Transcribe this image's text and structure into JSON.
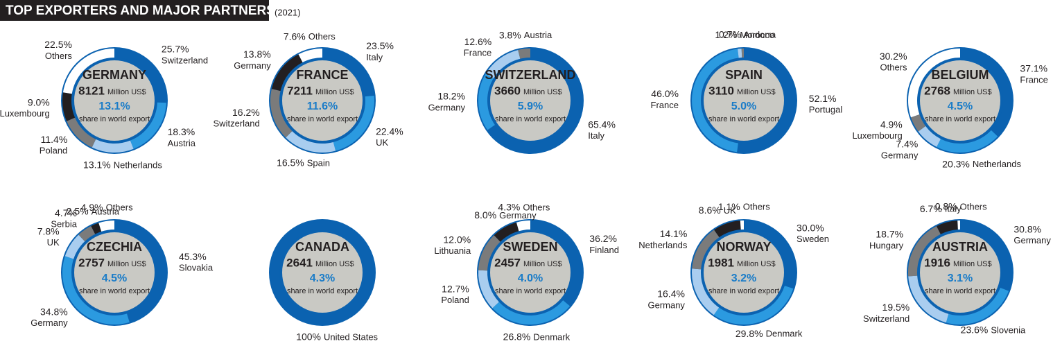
{
  "title": "TOP EXPORTERS AND MAJOR PARTNERS",
  "year": "(2021)",
  "chart_data": [
    {
      "type": "donut",
      "title": "GERMANY",
      "export": "8121",
      "unit": "Million US$",
      "share": "13.1%",
      "share_caption": "share in world export",
      "categories": [
        "Switzerland",
        "Austria",
        "Netherlands",
        "Poland",
        "Luxembourg",
        "Others"
      ],
      "values": [
        25.7,
        18.3,
        13.1,
        11.4,
        9.0,
        22.5
      ],
      "value_labels": [
        "25.7%",
        "18.3%",
        "13.1%",
        "11.4%",
        "9.0%",
        "22.5%"
      ],
      "colors": [
        "#0b62b0",
        "#2b9ae0",
        "#a9cdef",
        "#7b7b7b",
        "#231f20",
        "#ffffff"
      ]
    },
    {
      "type": "donut",
      "title": "FRANCE",
      "export": "7211",
      "unit": "Million US$",
      "share": "11.6%",
      "share_caption": "share in world export",
      "categories": [
        "Italy",
        "UK",
        "Spain",
        "Switzerland",
        "Germany",
        "Others"
      ],
      "values": [
        23.5,
        22.4,
        16.5,
        16.2,
        13.8,
        7.6
      ],
      "value_labels": [
        "23.5%",
        "22.4%",
        "16.5%",
        "16.2%",
        "13.8%",
        "7.6%"
      ],
      "colors": [
        "#0b62b0",
        "#2b9ae0",
        "#a9cdef",
        "#7b7b7b",
        "#231f20",
        "#ffffff"
      ]
    },
    {
      "type": "donut",
      "title": "SWITZERLAND",
      "export": "3660",
      "unit": "Million US$",
      "share": "5.9%",
      "share_caption": "share in world export",
      "categories": [
        "Italy",
        "Germany",
        "France",
        "Austria"
      ],
      "values": [
        65.4,
        18.2,
        12.6,
        3.8
      ],
      "value_labels": [
        "65.4%",
        "18.2%",
        "12.6%",
        "3.8%"
      ],
      "colors": [
        "#0b62b0",
        "#2b9ae0",
        "#a9cdef",
        "#7b7b7b"
      ]
    },
    {
      "type": "donut",
      "title": "SPAIN",
      "export": "3110",
      "unit": "Million US$",
      "share": "5.0%",
      "share_caption": "share in world export",
      "categories": [
        "Portugal",
        "France",
        "Morocco",
        "Andorra"
      ],
      "values": [
        52.1,
        46.0,
        1.2,
        0.7
      ],
      "value_labels": [
        "52.1%",
        "46.0%",
        "1.2%",
        "0.7%"
      ],
      "colors": [
        "#0b62b0",
        "#2b9ae0",
        "#a9cdef",
        "#7b7b7b"
      ]
    },
    {
      "type": "donut",
      "title": "BELGIUM",
      "export": "2768",
      "unit": "Million US$",
      "share": "4.5%",
      "share_caption": "share in world export",
      "categories": [
        "France",
        "Netherlands",
        "Germany",
        "Luxembourg",
        "Others"
      ],
      "values": [
        37.1,
        20.3,
        7.4,
        4.9,
        30.2
      ],
      "value_labels": [
        "37.1%",
        "20.3%",
        "7.4%",
        "4.9%",
        "30.2%"
      ],
      "colors": [
        "#0b62b0",
        "#2b9ae0",
        "#a9cdef",
        "#7b7b7b",
        "#ffffff"
      ]
    },
    {
      "type": "donut",
      "title": "CZECHIA",
      "export": "2757",
      "unit": "Million US$",
      "share": "4.5%",
      "share_caption": "share in world export",
      "categories": [
        "Slovakia",
        "Germany",
        "UK",
        "Serbia",
        "Austria",
        "Others"
      ],
      "values": [
        45.3,
        34.8,
        7.8,
        4.7,
        2.5,
        4.9
      ],
      "value_labels": [
        "45.3%",
        "34.8%",
        "7.8%",
        "4.7%",
        "2.5%",
        "4.9%"
      ],
      "colors": [
        "#0b62b0",
        "#2b9ae0",
        "#a9cdef",
        "#7b7b7b",
        "#231f20",
        "#ffffff"
      ]
    },
    {
      "type": "donut",
      "title": "CANADA",
      "export": "2641",
      "unit": "Million US$",
      "share": "4.3%",
      "share_caption": "share in world export",
      "categories": [
        "United States"
      ],
      "values": [
        100
      ],
      "value_labels": [
        "100%"
      ],
      "colors": [
        "#0b62b0"
      ]
    },
    {
      "type": "donut",
      "title": "SWEDEN",
      "export": "2457",
      "unit": "Million US$",
      "share": "4.0%",
      "share_caption": "share in world export",
      "categories": [
        "Finland",
        "Denmark",
        "Poland",
        "Lithuania",
        "Germany",
        "Others"
      ],
      "values": [
        36.2,
        26.8,
        12.7,
        12.0,
        8.0,
        4.3
      ],
      "value_labels": [
        "36.2%",
        "26.8%",
        "12.7%",
        "12.0%",
        "8.0%",
        "4.3%"
      ],
      "colors": [
        "#0b62b0",
        "#2b9ae0",
        "#a9cdef",
        "#7b7b7b",
        "#231f20",
        "#ffffff"
      ]
    },
    {
      "type": "donut",
      "title": "NORWAY",
      "export": "1981",
      "unit": "Million US$",
      "share": "3.2%",
      "share_caption": "share in world export",
      "categories": [
        "Sweden",
        "Denmark",
        "Germany",
        "Netherlands",
        "UK",
        "Others"
      ],
      "values": [
        30.0,
        29.8,
        16.4,
        14.1,
        8.6,
        1.1
      ],
      "value_labels": [
        "30.0%",
        "29.8%",
        "16.4%",
        "14.1%",
        "8.6%",
        "1.1%"
      ],
      "colors": [
        "#0b62b0",
        "#2b9ae0",
        "#a9cdef",
        "#7b7b7b",
        "#231f20",
        "#ffffff"
      ]
    },
    {
      "type": "donut",
      "title": "AUSTRIA",
      "export": "1916",
      "unit": "Million US$",
      "share": "3.1%",
      "share_caption": "share in world export",
      "categories": [
        "Germany",
        "Slovenia",
        "Switzerland",
        "Hungary",
        "Italy",
        "Others"
      ],
      "values": [
        30.8,
        23.6,
        19.5,
        18.7,
        6.7,
        0.8
      ],
      "value_labels": [
        "30.8%",
        "23.6%",
        "19.5%",
        "18.7%",
        "6.7%",
        "0.8%"
      ],
      "colors": [
        "#0b62b0",
        "#2b9ae0",
        "#a9cdef",
        "#7b7b7b",
        "#231f20",
        "#ffffff"
      ]
    }
  ]
}
